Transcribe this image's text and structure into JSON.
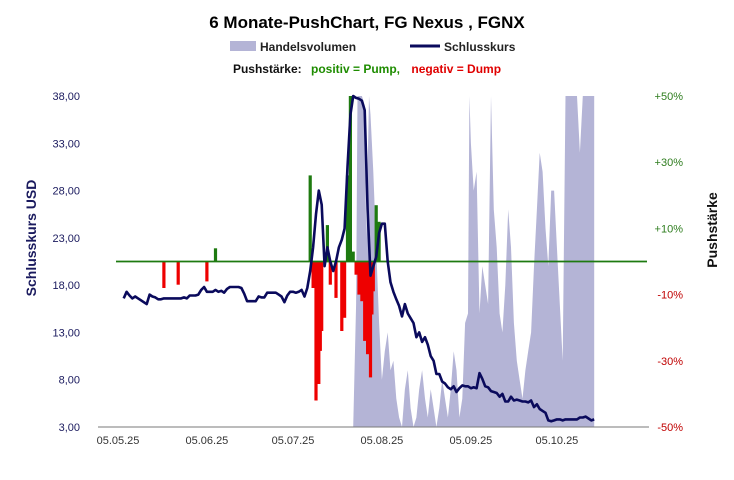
{
  "chart_data": {
    "type": "line",
    "title": "6 Monate-PushChart,  FG Nexus , FGNX",
    "legend": [
      {
        "name": "Handelsvolumen",
        "color": "#b4b4d6"
      },
      {
        "name": "Schlusskurs",
        "color": "#0a0a5c"
      }
    ],
    "legend_placement": "top",
    "subtitle": {
      "prefix": "Pushstärke:",
      "positive": "positiv = Pump,",
      "negative": "negativ = Dump",
      "positive_color": "#1e8c00",
      "negative_color": "#e00000"
    },
    "ylabel": "Schlusskurs USD",
    "y2label": "Pushstärke",
    "ylim": [
      3.0,
      38.0
    ],
    "y_ticks": [
      "3,00",
      "8,00",
      "13,00",
      "18,00",
      "23,00",
      "28,00",
      "33,00",
      "38,00"
    ],
    "y2lim": [
      -50,
      50
    ],
    "y2_ticks": [
      {
        "value": 50,
        "label": "+50%"
      },
      {
        "value": 30,
        "label": "+30%"
      },
      {
        "value": 10,
        "label": "+10%"
      },
      {
        "value": -10,
        "label": "-10%"
      },
      {
        "value": -30,
        "label": "-30%"
      },
      {
        "value": -50,
        "label": "-50%"
      }
    ],
    "x_ticks": [
      {
        "day": 0,
        "label": "05.05.25"
      },
      {
        "day": 31,
        "label": "05.06.25"
      },
      {
        "day": 61,
        "label": "05.07.25"
      },
      {
        "day": 92,
        "label": "05.08.25"
      },
      {
        "day": 123,
        "label": "05.09.25"
      },
      {
        "day": 153,
        "label": "05.10.25"
      }
    ],
    "xlim_days": [
      0,
      183
    ],
    "grid": false,
    "series": [
      {
        "name": "Schlusskurs",
        "color": "#0a0a5c",
        "points": [
          [
            2,
            16.6
          ],
          [
            3,
            17.3
          ],
          [
            4,
            16.9
          ],
          [
            5,
            16.6
          ],
          [
            6,
            16.8
          ],
          [
            7,
            16.6
          ],
          [
            8,
            16.4
          ],
          [
            9,
            16.2
          ],
          [
            10,
            16.0
          ],
          [
            11,
            17.0
          ],
          [
            12,
            16.8
          ],
          [
            13,
            16.7
          ],
          [
            14,
            16.5
          ],
          [
            15,
            16.5
          ],
          [
            16,
            16.6
          ],
          [
            17,
            16.6
          ],
          [
            18,
            16.6
          ],
          [
            19,
            16.6
          ],
          [
            20,
            16.6
          ],
          [
            21,
            16.6
          ],
          [
            22,
            16.6
          ],
          [
            23,
            16.7
          ],
          [
            24,
            16.6
          ],
          [
            25,
            16.9
          ],
          [
            26,
            16.9
          ],
          [
            27,
            16.9
          ],
          [
            28,
            17.0
          ],
          [
            29,
            17.5
          ],
          [
            30,
            17.8
          ],
          [
            31,
            17.3
          ],
          [
            32,
            17.3
          ],
          [
            33,
            17.3
          ],
          [
            34,
            17.5
          ],
          [
            35,
            17.3
          ],
          [
            36,
            17.4
          ],
          [
            37,
            17.2
          ],
          [
            38,
            17.6
          ],
          [
            39,
            17.8
          ],
          [
            40,
            17.8
          ],
          [
            41,
            17.8
          ],
          [
            42,
            17.8
          ],
          [
            43,
            17.7
          ],
          [
            44,
            17.1
          ],
          [
            45,
            16.3
          ],
          [
            46,
            16.3
          ],
          [
            47,
            16.3
          ],
          [
            48,
            16.3
          ],
          [
            49,
            16.8
          ],
          [
            50,
            16.7
          ],
          [
            51,
            16.7
          ],
          [
            52,
            17.2
          ],
          [
            53,
            17.2
          ],
          [
            54,
            17.2
          ],
          [
            55,
            17.2
          ],
          [
            56,
            17.0
          ],
          [
            57,
            16.8
          ],
          [
            58,
            16.2
          ],
          [
            59,
            16.9
          ],
          [
            60,
            17.3
          ],
          [
            61,
            17.3
          ],
          [
            62,
            17.2
          ],
          [
            63,
            17.3
          ],
          [
            64,
            17.5
          ],
          [
            65,
            16.8
          ],
          [
            66,
            17.7
          ],
          [
            67,
            19.5
          ],
          [
            68,
            22.0
          ],
          [
            69,
            25.5
          ],
          [
            70,
            28.0
          ],
          [
            71,
            26.5
          ],
          [
            72,
            20.0
          ],
          [
            73,
            22.0
          ],
          [
            74,
            20.5
          ],
          [
            75,
            19.5
          ],
          [
            76,
            20.5
          ],
          [
            77,
            22.0
          ],
          [
            78,
            22.8
          ],
          [
            79,
            24.0
          ],
          [
            80,
            30.5
          ],
          [
            81,
            36.0
          ],
          [
            82,
            38.0
          ],
          [
            83,
            37.8
          ],
          [
            84,
            37.7
          ],
          [
            85,
            37.5
          ],
          [
            86,
            36.5
          ],
          [
            87,
            26.0
          ],
          [
            88,
            19.0
          ],
          [
            89,
            20.0
          ],
          [
            90,
            21.0
          ],
          [
            91,
            23.5
          ],
          [
            92,
            24.5
          ],
          [
            93,
            24.5
          ],
          [
            94,
            20.5
          ],
          [
            95,
            18.3
          ],
          [
            96,
            17.3
          ],
          [
            97,
            16.5
          ],
          [
            98,
            15.8
          ],
          [
            99,
            14.7
          ],
          [
            100,
            16.0
          ],
          [
            101,
            15.0
          ],
          [
            102,
            14.5
          ],
          [
            103,
            14.0
          ],
          [
            104,
            12.5
          ],
          [
            105,
            13.0
          ],
          [
            106,
            12.0
          ],
          [
            107,
            12.5
          ],
          [
            108,
            11.7
          ],
          [
            109,
            10.5
          ],
          [
            110,
            10.0
          ],
          [
            111,
            8.6
          ],
          [
            112,
            8.6
          ],
          [
            113,
            7.8
          ],
          [
            114,
            7.6
          ],
          [
            115,
            7.2
          ],
          [
            116,
            7.0
          ],
          [
            117,
            7.3
          ],
          [
            118,
            6.7
          ],
          [
            119,
            7.1
          ],
          [
            120,
            7.4
          ],
          [
            121,
            7.3
          ],
          [
            122,
            7.3
          ],
          [
            123,
            7.1
          ],
          [
            124,
            7.2
          ],
          [
            125,
            7.1
          ],
          [
            126,
            8.7
          ],
          [
            127,
            8.1
          ],
          [
            128,
            7.3
          ],
          [
            129,
            7.2
          ],
          [
            130,
            6.8
          ],
          [
            131,
            6.7
          ],
          [
            132,
            6.6
          ],
          [
            133,
            6.2
          ],
          [
            134,
            6.5
          ],
          [
            135,
            5.7
          ],
          [
            136,
            5.7
          ],
          [
            137,
            6.2
          ],
          [
            138,
            5.8
          ],
          [
            139,
            5.9
          ],
          [
            140,
            5.8
          ],
          [
            141,
            5.7
          ],
          [
            142,
            5.7
          ],
          [
            143,
            5.6
          ],
          [
            144,
            5.8
          ],
          [
            145,
            5.1
          ],
          [
            146,
            5.4
          ],
          [
            147,
            4.9
          ],
          [
            148,
            4.7
          ],
          [
            149,
            4.5
          ],
          [
            150,
            3.7
          ],
          [
            151,
            3.6
          ],
          [
            152,
            3.7
          ],
          [
            153,
            3.8
          ],
          [
            154,
            3.8
          ],
          [
            155,
            3.7
          ],
          [
            156,
            3.8
          ],
          [
            157,
            3.8
          ],
          [
            158,
            3.8
          ],
          [
            159,
            3.8
          ],
          [
            160,
            3.8
          ],
          [
            161,
            4.0
          ],
          [
            162,
            4.0
          ],
          [
            163,
            4.1
          ],
          [
            164,
            3.9
          ],
          [
            165,
            3.7
          ],
          [
            166,
            3.8
          ]
        ]
      },
      {
        "name": "Handelsvolumen",
        "color": "#b4b4d6",
        "points": [
          [
            82,
            3
          ],
          [
            83,
            16
          ],
          [
            83.5,
            38
          ],
          [
            84,
            38
          ],
          [
            85,
            38
          ],
          [
            86,
            37
          ],
          [
            86.5,
            23
          ],
          [
            87,
            30
          ],
          [
            87.5,
            38
          ],
          [
            88,
            36
          ],
          [
            89,
            30
          ],
          [
            90,
            22
          ],
          [
            91,
            14
          ],
          [
            92,
            8
          ],
          [
            93,
            11
          ],
          [
            94,
            13
          ],
          [
            95,
            9
          ],
          [
            96,
            10
          ],
          [
            97,
            6
          ],
          [
            98,
            4
          ],
          [
            99,
            3
          ],
          [
            100,
            7
          ],
          [
            101,
            9
          ],
          [
            102,
            5
          ],
          [
            103,
            3
          ],
          [
            104,
            4
          ],
          [
            105,
            7
          ],
          [
            106,
            9
          ],
          [
            107,
            6
          ],
          [
            108,
            4
          ],
          [
            109,
            7
          ],
          [
            110,
            5
          ],
          [
            111,
            3
          ],
          [
            112,
            5
          ],
          [
            113,
            8
          ],
          [
            114,
            6
          ],
          [
            115,
            4
          ],
          [
            116,
            7
          ],
          [
            117,
            11
          ],
          [
            118,
            9
          ],
          [
            119,
            4
          ],
          [
            120,
            6
          ],
          [
            121,
            14
          ],
          [
            122,
            15
          ],
          [
            122.5,
            38
          ],
          [
            123,
            33
          ],
          [
            124,
            28
          ],
          [
            125,
            30
          ],
          [
            126,
            15
          ],
          [
            127,
            20
          ],
          [
            128,
            18
          ],
          [
            129,
            16
          ],
          [
            130,
            38
          ],
          [
            131,
            26
          ],
          [
            132,
            22
          ],
          [
            133,
            15
          ],
          [
            134,
            13
          ],
          [
            135,
            18
          ],
          [
            136,
            26
          ],
          [
            137,
            22
          ],
          [
            138,
            14
          ],
          [
            139,
            10
          ],
          [
            140,
            8
          ],
          [
            141,
            6
          ],
          [
            142,
            9
          ],
          [
            143,
            11
          ],
          [
            144,
            13
          ],
          [
            145,
            20
          ],
          [
            146,
            26
          ],
          [
            147,
            32
          ],
          [
            148,
            30
          ],
          [
            149,
            24
          ],
          [
            150,
            20
          ],
          [
            151,
            28
          ],
          [
            152,
            28
          ],
          [
            153,
            22
          ],
          [
            154,
            16
          ],
          [
            155,
            10
          ],
          [
            156,
            38
          ],
          [
            157,
            38
          ],
          [
            158,
            38
          ],
          [
            159,
            38
          ],
          [
            160,
            38
          ],
          [
            161,
            32
          ],
          [
            162,
            38
          ],
          [
            163,
            38
          ],
          [
            164,
            38
          ],
          [
            165,
            38
          ],
          [
            166,
            38
          ],
          [
            166,
            3
          ]
        ]
      },
      {
        "name": "Pushstärke",
        "type": "bar",
        "baseline_percent": 0,
        "positive_color": "#1e7a10",
        "negative_color": "#ee0000",
        "points": [
          [
            16,
            -8
          ],
          [
            21,
            -7
          ],
          [
            31,
            -6
          ],
          [
            34,
            4
          ],
          [
            67,
            26
          ],
          [
            68,
            -8
          ],
          [
            69,
            -42
          ],
          [
            70,
            -37
          ],
          [
            70.5,
            -27
          ],
          [
            71,
            -21
          ],
          [
            73,
            11
          ],
          [
            74,
            -7
          ],
          [
            76,
            -11
          ],
          [
            78,
            -21
          ],
          [
            79,
            -17
          ],
          [
            80,
            26
          ],
          [
            81,
            51
          ],
          [
            82,
            3
          ],
          [
            83,
            -4
          ],
          [
            84,
            -10
          ],
          [
            85,
            -12
          ],
          [
            86,
            -24
          ],
          [
            86.5,
            -22
          ],
          [
            87,
            -28
          ],
          [
            88,
            -35
          ],
          [
            88.5,
            -16
          ],
          [
            89,
            -9
          ],
          [
            90,
            17
          ],
          [
            91,
            12
          ]
        ]
      }
    ]
  }
}
